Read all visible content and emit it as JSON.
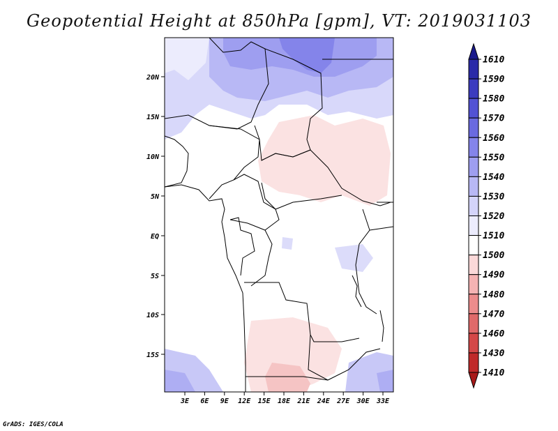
{
  "title": "Geopotential Height at 850hPa [gpm], VT: 2019031103",
  "credit": "GrADS: IGES/COLA",
  "map": {
    "lat_labels": [
      "20N",
      "15N",
      "10N",
      "5N",
      "EQ",
      "5S",
      "10S",
      "15S"
    ],
    "lon_labels": [
      "3E",
      "6E",
      "9E",
      "12E",
      "15E",
      "18E",
      "21E",
      "24E",
      "27E",
      "30E",
      "33E"
    ]
  },
  "colorbar": {
    "levels": [
      "1610",
      "1590",
      "1580",
      "1570",
      "1560",
      "1550",
      "1540",
      "1530",
      "1520",
      "1510",
      "1500",
      "1490",
      "1480",
      "1470",
      "1460",
      "1430",
      "1410"
    ],
    "colors": [
      "#1a1a8c",
      "#2a2aa8",
      "#3b3bbf",
      "#5252d4",
      "#6a6ae0",
      "#8484ea",
      "#9e9ef0",
      "#b8b8f5",
      "#d4d4fa",
      "#ececfd",
      "#ffffff",
      "#fbd9d9",
      "#f5b3b3",
      "#ec8c8c",
      "#e06a6a",
      "#d44848",
      "#c02a2a",
      "#a81a1a"
    ]
  }
}
